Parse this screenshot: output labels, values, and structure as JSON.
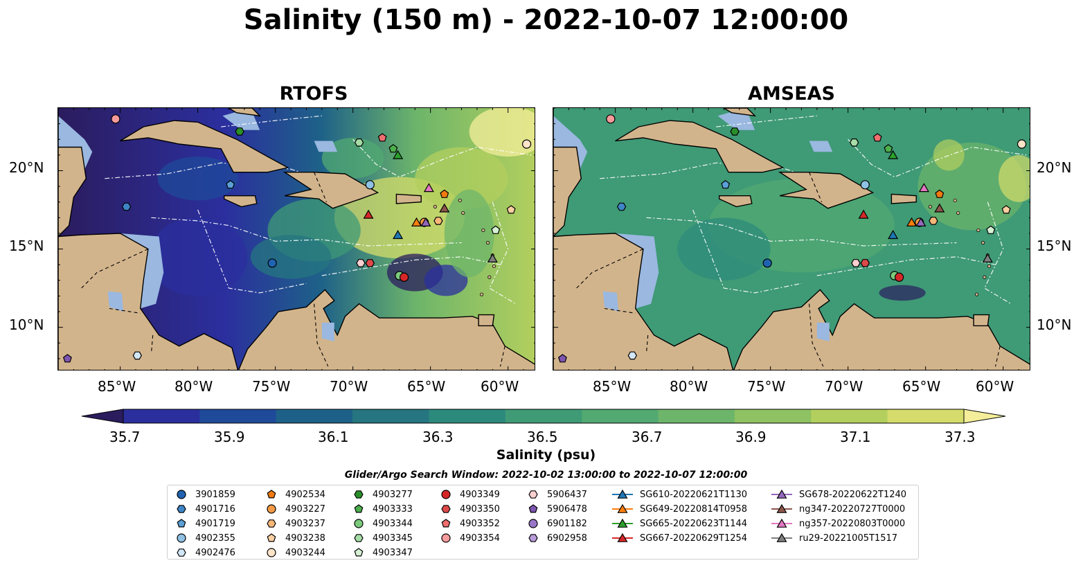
{
  "title": "Salinity (150 m) - 2022-10-07 12:00:00",
  "panels": [
    {
      "title": "RTOFS",
      "model": "rtofs"
    },
    {
      "title": "AMSEAS",
      "model": "amseas"
    }
  ],
  "lon_ticks": [
    "85°W",
    "80°W",
    "75°W",
    "70°W",
    "65°W",
    "60°W"
  ],
  "lat_ticks": [
    "20°N",
    "15°N",
    "10°N"
  ],
  "map_extent": {
    "lon": [
      -89,
      -58.2
    ],
    "lat": [
      7.2,
      24
    ]
  },
  "colorbar": {
    "label": "Salinity (psu)",
    "ticks": [
      "35.7",
      "35.9",
      "36.1",
      "36.3",
      "36.5",
      "36.7",
      "36.9",
      "37.1",
      "37.3"
    ],
    "range": [
      35.7,
      37.3
    ],
    "extend": "both",
    "colormap": [
      "#2b1c5e",
      "#2b2f9e",
      "#1f4a9a",
      "#1e6188",
      "#257680",
      "#2c8a7c",
      "#3f9a76",
      "#52a972",
      "#6db56a",
      "#8ec262",
      "#b3cf5e",
      "#d6dc6b",
      "#f4ee9a"
    ]
  },
  "colors": {
    "land": "#d2b48c",
    "shelf": "#9ab8e0",
    "boundary": "#ffffff"
  },
  "search_window": "Glider/Argo Search Window: 2022-10-02 13:00:00 to 2022-10-07 12:00:00",
  "legend": [
    {
      "label": "3901859",
      "marker": "circle",
      "color": "#1f63b0"
    },
    {
      "label": "4901716",
      "marker": "hexagon",
      "color": "#3e85c6"
    },
    {
      "label": "4901719",
      "marker": "pentagon",
      "color": "#5b9fd6"
    },
    {
      "label": "4902355",
      "marker": "circle",
      "color": "#8fc1e4"
    },
    {
      "label": "4902476",
      "marker": "hexagon",
      "color": "#d2e6f5"
    },
    {
      "label": "4902534",
      "marker": "pentagon",
      "color": "#f07a10"
    },
    {
      "label": "4903227",
      "marker": "circle",
      "color": "#f59a45"
    },
    {
      "label": "4903237",
      "marker": "hexagon",
      "color": "#f8b778"
    },
    {
      "label": "4903238",
      "marker": "pentagon",
      "color": "#fbcfa2"
    },
    {
      "label": "4903244",
      "marker": "circle",
      "color": "#fde3c8"
    },
    {
      "label": "4903277",
      "marker": "hexagon",
      "color": "#2a8f2a"
    },
    {
      "label": "4903333",
      "marker": "pentagon",
      "color": "#4caf4c"
    },
    {
      "label": "4903344",
      "marker": "circle",
      "color": "#7cca7c"
    },
    {
      "label": "4903345",
      "marker": "hexagon",
      "color": "#a6dca6"
    },
    {
      "label": "4903347",
      "marker": "pentagon",
      "color": "#d6f1d4"
    },
    {
      "label": "4903349",
      "marker": "circle",
      "color": "#d62728"
    },
    {
      "label": "4903350",
      "marker": "hexagon",
      "color": "#dd4a4a"
    },
    {
      "label": "4903352",
      "marker": "pentagon",
      "color": "#ef6f6f"
    },
    {
      "label": "4903354",
      "marker": "circle",
      "color": "#f59b9b"
    },
    {
      "label": "5906437",
      "marker": "hexagon",
      "color": "#fbd0d0"
    },
    {
      "label": "5906478",
      "marker": "pentagon",
      "color": "#7e55b0"
    },
    {
      "label": "6901182",
      "marker": "circle",
      "color": "#9a76c8"
    },
    {
      "label": "6902958",
      "marker": "hexagon",
      "color": "#b79ad8"
    },
    {
      "label": "SG610-20220621T1130",
      "marker": "triangle",
      "color": "#1f77b4"
    },
    {
      "label": "SG649-20220814T0958",
      "marker": "triangle",
      "color": "#ff7f0e"
    },
    {
      "label": "SG665-20220623T1144",
      "marker": "triangle",
      "color": "#2ca02c"
    },
    {
      "label": "SG667-20220629T1254",
      "marker": "triangle",
      "color": "#d62728"
    },
    {
      "label": "SG678-20220622T1240",
      "marker": "triangle",
      "color": "#9467bd"
    },
    {
      "label": "ng347-20220727T0000",
      "marker": "triangle",
      "color": "#8c564b"
    },
    {
      "label": "ng357-20220803T0000",
      "marker": "triangle",
      "color": "#e377c2"
    },
    {
      "label": "ru29-20221005T1517",
      "marker": "triangle",
      "color": "#7f7f7f"
    }
  ],
  "observations": [
    {
      "id": "3901859",
      "lon": -75.2,
      "lat": 14.1
    },
    {
      "id": "4901716",
      "lon": -84.6,
      "lat": 17.7
    },
    {
      "id": "4901719",
      "lon": -77.9,
      "lat": 19.1
    },
    {
      "id": "4902355",
      "lon": -68.9,
      "lat": 19.1
    },
    {
      "id": "4902476",
      "lon": -83.9,
      "lat": 8.2
    },
    {
      "id": "4902534",
      "lon": -64.1,
      "lat": 18.5
    },
    {
      "id": "4903227",
      "lon": -65.4,
      "lat": 16.7
    },
    {
      "id": "4903237",
      "lon": -64.5,
      "lat": 16.8
    },
    {
      "id": "4903238",
      "lon": -59.8,
      "lat": 17.5
    },
    {
      "id": "4903244",
      "lon": -58.8,
      "lat": 21.7
    },
    {
      "id": "4903277",
      "lon": -77.3,
      "lat": 22.5
    },
    {
      "id": "4903333",
      "lon": -67.4,
      "lat": 21.4
    },
    {
      "id": "4903344",
      "lon": -67.0,
      "lat": 13.3
    },
    {
      "id": "4903345",
      "lon": -69.6,
      "lat": 21.8
    },
    {
      "id": "4903347",
      "lon": -60.8,
      "lat": 16.2
    },
    {
      "id": "4903349",
      "lon": -66.7,
      "lat": 13.2
    },
    {
      "id": "4903350",
      "lon": -68.9,
      "lat": 14.1
    },
    {
      "id": "4903352",
      "lon": -68.1,
      "lat": 22.1
    },
    {
      "id": "4903354",
      "lon": -85.3,
      "lat": 23.3
    },
    {
      "id": "5906437",
      "lon": -69.5,
      "lat": 14.1
    },
    {
      "id": "5906478",
      "lon": -88.4,
      "lat": 8.0
    },
    {
      "id": "SG610-20220621T1130",
      "lon": -67.1,
      "lat": 15.9
    },
    {
      "id": "SG649-20220814T0958",
      "lon": -65.9,
      "lat": 16.7
    },
    {
      "id": "SG665-20220623T1144",
      "lon": -67.1,
      "lat": 21.0
    },
    {
      "id": "SG667-20220629T1254",
      "lon": -69.0,
      "lat": 17.2
    },
    {
      "id": "SG678-20220622T1240",
      "lon": -65.3,
      "lat": 16.7
    },
    {
      "id": "ng347-20220727T0000",
      "lon": -64.1,
      "lat": 17.6
    },
    {
      "id": "ng357-20220803T0000",
      "lon": -65.1,
      "lat": 18.9
    },
    {
      "id": "ru29-20221005T1517",
      "lon": -61.0,
      "lat": 14.4
    }
  ]
}
